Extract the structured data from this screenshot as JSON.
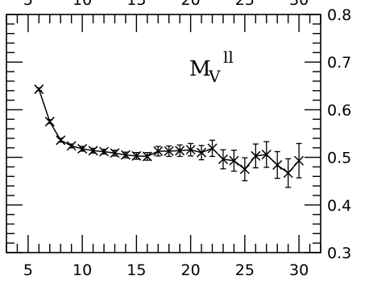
{
  "chart_data": {
    "type": "line",
    "title": "",
    "xlabel": "",
    "ylabel": "",
    "annotation": {
      "main": "M",
      "subscript": "V",
      "superscript": "ll"
    },
    "xlim": [
      3,
      32
    ],
    "ylim": [
      0.3,
      0.8
    ],
    "x_ticks_bottom": [
      5,
      10,
      15,
      20,
      25,
      30
    ],
    "x_ticks_top": [
      5,
      10,
      15,
      20,
      25,
      30
    ],
    "y_ticks_right": [
      "0.3",
      "0.4",
      "0.5",
      "0.6",
      "0.7",
      "0.8"
    ],
    "y_tick_values": [
      0.3,
      0.4,
      0.5,
      0.6,
      0.7,
      0.8
    ],
    "series": [
      {
        "marker": "x",
        "x": [
          6,
          7,
          8,
          9,
          10,
          11,
          12,
          13,
          14,
          15,
          16,
          17,
          18,
          19,
          20,
          21,
          22,
          23,
          24,
          25,
          26,
          27,
          28,
          29,
          30
        ],
        "y": [
          0.643,
          0.575,
          0.536,
          0.524,
          0.518,
          0.514,
          0.512,
          0.509,
          0.505,
          0.503,
          0.502,
          0.513,
          0.513,
          0.514,
          0.516,
          0.51,
          0.519,
          0.496,
          0.493,
          0.475,
          0.503,
          0.506,
          0.484,
          0.467,
          0.493
        ],
        "err": [
          0.003,
          0.004,
          0.004,
          0.004,
          0.005,
          0.005,
          0.005,
          0.006,
          0.006,
          0.007,
          0.008,
          0.01,
          0.011,
          0.012,
          0.013,
          0.015,
          0.017,
          0.02,
          0.022,
          0.024,
          0.025,
          0.027,
          0.028,
          0.03,
          0.036
        ]
      }
    ],
    "grid": false,
    "legend": "none"
  }
}
